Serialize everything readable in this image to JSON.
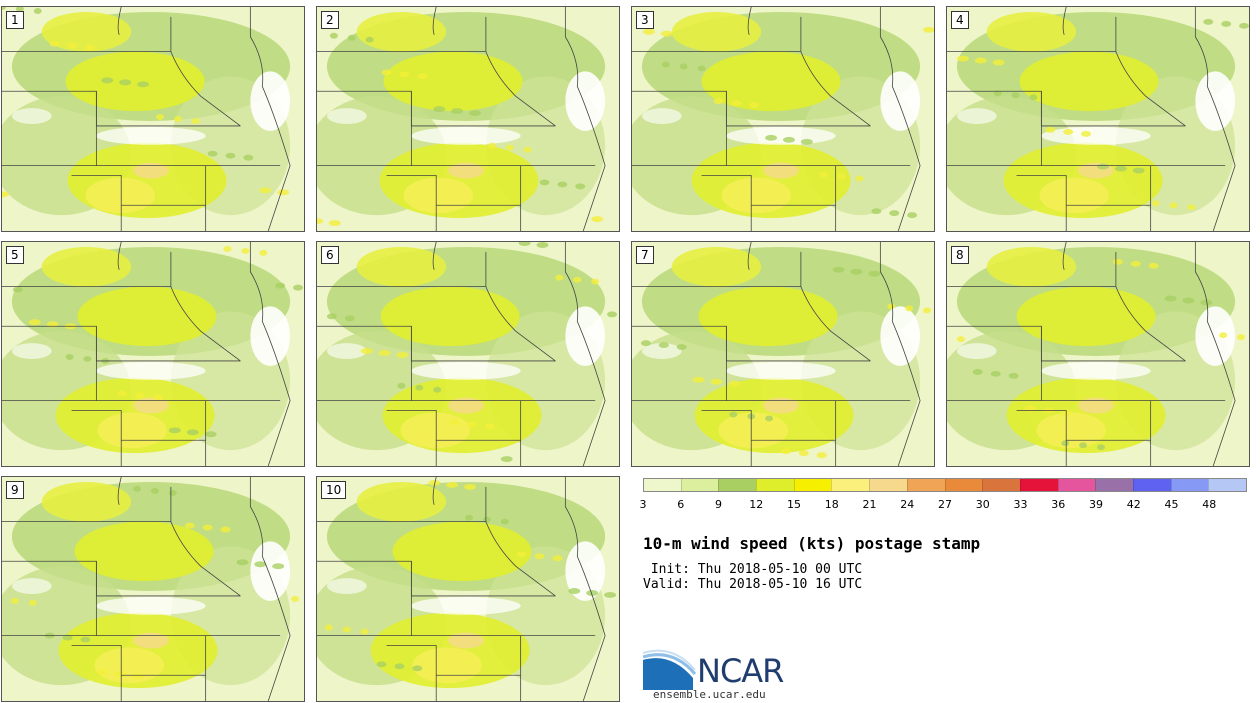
{
  "panels": [
    {
      "label": "1"
    },
    {
      "label": "2"
    },
    {
      "label": "3"
    },
    {
      "label": "4"
    },
    {
      "label": "5"
    },
    {
      "label": "6"
    },
    {
      "label": "7"
    },
    {
      "label": "8"
    },
    {
      "label": "9"
    },
    {
      "label": "10"
    }
  ],
  "colorbar": {
    "colors": [
      "#eef6cc",
      "#dcef9e",
      "#a9cf63",
      "#dfee2a",
      "#f6f000",
      "#fbf07c",
      "#f6d98d",
      "#efa555",
      "#e88a3a",
      "#d9753c",
      "#e5123a",
      "#e5559d",
      "#9a70a8",
      "#5f62f0",
      "#8599f5",
      "#b5c7f5"
    ],
    "tick_labels": [
      "3",
      "6",
      "9",
      "12",
      "15",
      "18",
      "21",
      "24",
      "27",
      "30",
      "33",
      "36",
      "39",
      "42",
      "45",
      "48"
    ]
  },
  "title": "10-m wind speed (kts) postage stamp",
  "init_line": " Init: Thu 2018-05-10 00 UTC",
  "valid_line": "Valid: Thu 2018-05-10 16 UTC",
  "logo": {
    "text": "NCAR",
    "site": "ensemble.ucar.edu"
  }
}
